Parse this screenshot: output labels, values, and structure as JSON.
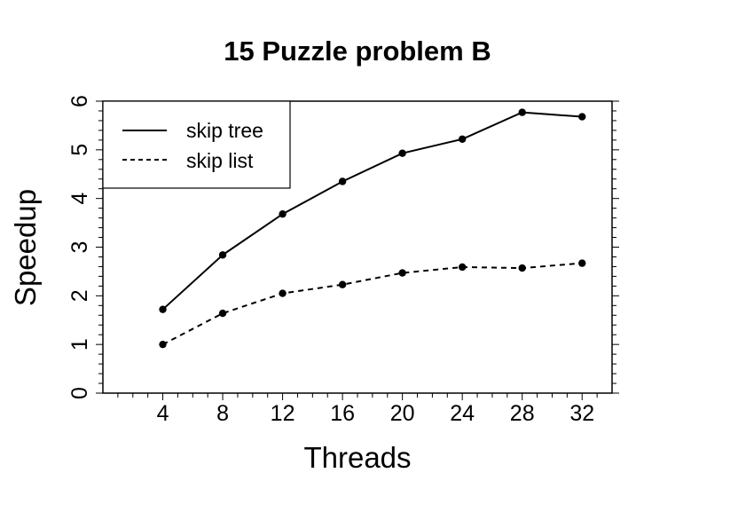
{
  "chart_data": {
    "type": "line",
    "title": "15 Puzzle problem B",
    "xlabel": "Threads",
    "ylabel": "Speedup",
    "x": [
      4,
      8,
      12,
      16,
      20,
      24,
      28,
      32
    ],
    "xlim": [
      0,
      34
    ],
    "ylim": [
      0,
      6
    ],
    "xticks": [
      "4",
      "8",
      "12",
      "16",
      "20",
      "24",
      "28",
      "32"
    ],
    "yticks": [
      "0",
      "1",
      "2",
      "3",
      "4",
      "5",
      "6"
    ],
    "series": [
      {
        "name": "skip tree",
        "style": "solid",
        "values": [
          1.72,
          2.84,
          3.68,
          4.35,
          4.93,
          5.22,
          5.77,
          5.68
        ]
      },
      {
        "name": "skip list",
        "style": "dashed",
        "values": [
          1.0,
          1.64,
          2.05,
          2.23,
          2.47,
          2.59,
          2.57,
          2.67
        ]
      }
    ],
    "legend_position": "top-left",
    "grid": false,
    "color": "#000000"
  }
}
